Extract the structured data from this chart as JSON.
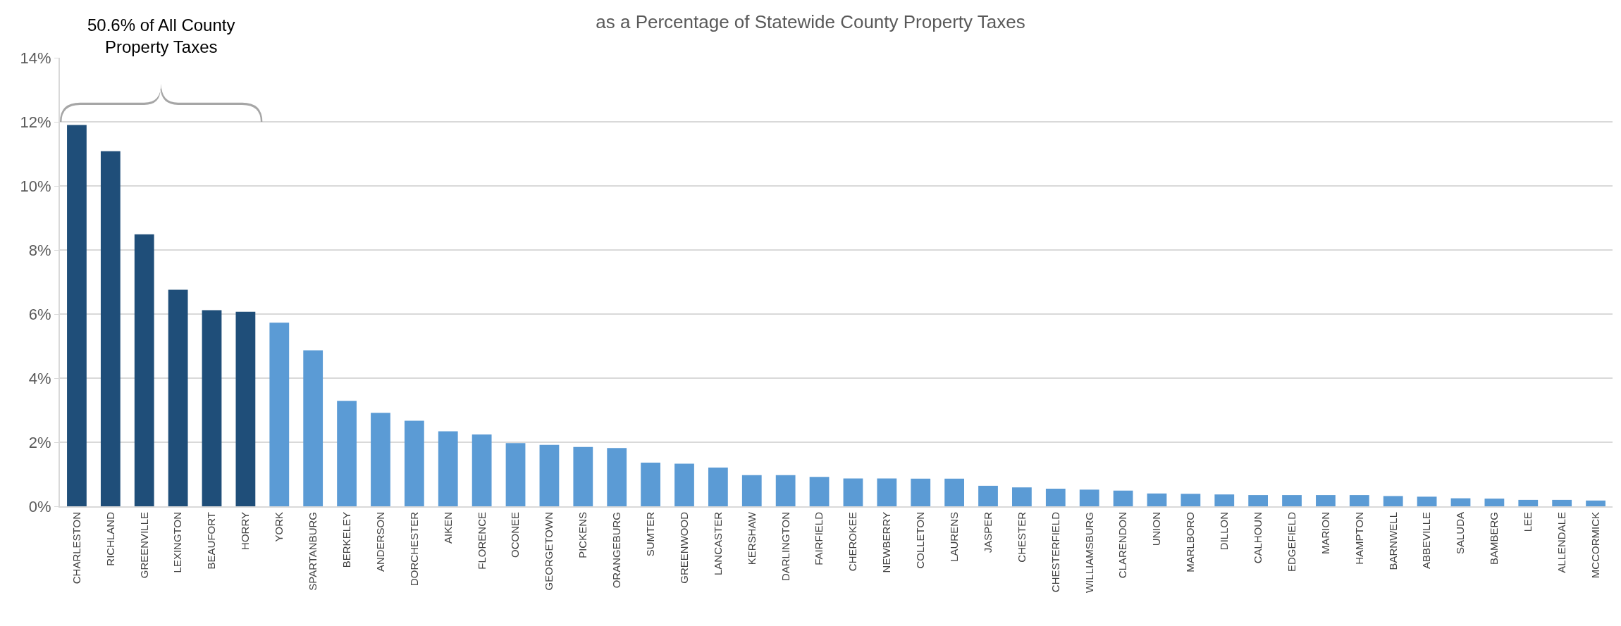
{
  "chart_data": {
    "type": "bar",
    "title": "as a Percentage of Statewide County Property Taxes",
    "categories": [
      "CHARLESTON",
      "RICHLAND",
      "GREENVILLE",
      "LEXINGTON",
      "BEAUFORT",
      "HORRY",
      "YORK",
      "SPARTANBURG",
      "BERKELEY",
      "ANDERSON",
      "DORCHESTER",
      "AIKEN",
      "FLORENCE",
      "OCONEE",
      "GEORGETOWN",
      "PICKENS",
      "ORANGEBURG",
      "SUMTER",
      "GREENWOOD",
      "LANCASTER",
      "KERSHAW",
      "DARLINGTON",
      "FAIRFIELD",
      "CHEROKEE",
      "NEWBERRY",
      "COLLETON",
      "LAURENS",
      "JASPER",
      "CHESTER",
      "CHESTERFIELD",
      "WILLIAMSBURG",
      "CLARENDON",
      "UNION",
      "MARLBORO",
      "DILLON",
      "CALHOUN",
      "EDGEFIELD",
      "MARION",
      "HAMPTON",
      "BARNWELL",
      "ABBEVILLE",
      "SALUDA",
      "BAMBERG",
      "LEE",
      "ALLENDALE",
      "MCCORMICK"
    ],
    "values": [
      11.9,
      11.08,
      8.49,
      6.76,
      6.12,
      6.07,
      5.73,
      4.87,
      3.29,
      2.92,
      2.67,
      2.34,
      2.24,
      1.97,
      1.92,
      1.85,
      1.82,
      1.36,
      1.33,
      1.21,
      0.97,
      0.97,
      0.92,
      0.87,
      0.87,
      0.86,
      0.86,
      0.64,
      0.59,
      0.55,
      0.52,
      0.49,
      0.4,
      0.39,
      0.37,
      0.35,
      0.35,
      0.35,
      0.35,
      0.32,
      0.3,
      0.25,
      0.24,
      0.2,
      0.2,
      0.18
    ],
    "colors": [
      "#1f4e79",
      "#1f4e79",
      "#1f4e79",
      "#1f4e79",
      "#1f4e79",
      "#1f4e79",
      "#5b9bd5",
      "#5b9bd5",
      "#5b9bd5",
      "#5b9bd5",
      "#5b9bd5",
      "#5b9bd5",
      "#5b9bd5",
      "#5b9bd5",
      "#5b9bd5",
      "#5b9bd5",
      "#5b9bd5",
      "#5b9bd5",
      "#5b9bd5",
      "#5b9bd5",
      "#5b9bd5",
      "#5b9bd5",
      "#5b9bd5",
      "#5b9bd5",
      "#5b9bd5",
      "#5b9bd5",
      "#5b9bd5",
      "#5b9bd5",
      "#5b9bd5",
      "#5b9bd5",
      "#5b9bd5",
      "#5b9bd5",
      "#5b9bd5",
      "#5b9bd5",
      "#5b9bd5",
      "#5b9bd5",
      "#5b9bd5",
      "#5b9bd5",
      "#5b9bd5",
      "#5b9bd5",
      "#5b9bd5",
      "#5b9bd5",
      "#5b9bd5",
      "#5b9bd5",
      "#5b9bd5",
      "#5b9bd5"
    ],
    "ylim": [
      0,
      14
    ],
    "yticks": [
      {
        "value": 0,
        "label": "0%"
      },
      {
        "value": 2,
        "label": "2%"
      },
      {
        "value": 4,
        "label": "4%"
      },
      {
        "value": 6,
        "label": "6%"
      },
      {
        "value": 8,
        "label": "8%"
      },
      {
        "value": 10,
        "label": "10%"
      },
      {
        "value": 12,
        "label": "12%"
      },
      {
        "value": 14,
        "label": "14%"
      }
    ],
    "grid": "y",
    "annotations": [
      "50.6% of All County\nProperty Taxes"
    ]
  }
}
